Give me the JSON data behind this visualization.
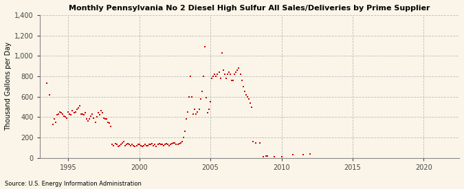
{
  "title": "Monthly Pennsylvania No 2 Diesel High Sulfur All Sales/Deliveries by Prime Supplier",
  "ylabel": "Thousand Gallons per Day",
  "source": "Source: U.S. Energy Information Administration",
  "background_color": "#faf5e8",
  "dot_color": "#cc0000",
  "xlim": [
    1993.0,
    2022.5
  ],
  "ylim": [
    0,
    1400
  ],
  "yticks": [
    0,
    200,
    400,
    600,
    800,
    1000,
    1200,
    1400
  ],
  "xticks": [
    1995,
    2000,
    2005,
    2010,
    2015,
    2020
  ],
  "data_x": [
    1993.5,
    1993.7,
    1993.9,
    1994.0,
    1994.1,
    1994.2,
    1994.3,
    1994.4,
    1994.5,
    1994.6,
    1994.7,
    1994.8,
    1994.9,
    1995.0,
    1995.1,
    1995.2,
    1995.3,
    1995.4,
    1995.5,
    1995.6,
    1995.7,
    1995.8,
    1995.9,
    1996.0,
    1996.1,
    1996.2,
    1996.3,
    1996.4,
    1996.5,
    1996.6,
    1996.7,
    1996.8,
    1996.9,
    1997.0,
    1997.1,
    1997.2,
    1997.3,
    1997.4,
    1997.5,
    1997.6,
    1997.7,
    1997.8,
    1997.9,
    1998.0,
    1998.1,
    1998.2,
    1998.3,
    1998.4,
    1998.5,
    1998.6,
    1998.7,
    1998.8,
    1998.9,
    1999.0,
    1999.1,
    1999.2,
    1999.3,
    1999.4,
    1999.5,
    1999.6,
    1999.7,
    1999.8,
    1999.9,
    2000.0,
    2000.1,
    2000.2,
    2000.3,
    2000.4,
    2000.5,
    2000.6,
    2000.7,
    2000.8,
    2000.9,
    2001.0,
    2001.1,
    2001.2,
    2001.3,
    2001.4,
    2001.5,
    2001.6,
    2001.7,
    2001.8,
    2001.9,
    2002.0,
    2002.1,
    2002.2,
    2002.3,
    2002.4,
    2002.5,
    2002.6,
    2002.7,
    2002.8,
    2002.9,
    2003.0,
    2003.1,
    2003.2,
    2003.3,
    2003.4,
    2003.5,
    2003.6,
    2003.7,
    2003.8,
    2003.9,
    2004.0,
    2004.1,
    2004.2,
    2004.3,
    2004.4,
    2004.5,
    2004.6,
    2004.7,
    2004.8,
    2004.9,
    2005.0,
    2005.1,
    2005.2,
    2005.3,
    2005.4,
    2005.5,
    2005.6,
    2005.7,
    2005.8,
    2005.9,
    2006.0,
    2006.1,
    2006.2,
    2006.3,
    2006.4,
    2006.5,
    2006.6,
    2006.7,
    2006.8,
    2006.9,
    2007.0,
    2007.1,
    2007.2,
    2007.3,
    2007.4,
    2007.5,
    2007.6,
    2007.7,
    2007.8,
    2007.9,
    2008.0,
    2008.2,
    2008.5,
    2008.7,
    2008.9,
    2009.0,
    2009.5,
    2010.0,
    2010.8,
    2011.5,
    2012.0
  ],
  "data_y": [
    730,
    620,
    330,
    380,
    350,
    420,
    430,
    450,
    440,
    430,
    410,
    400,
    390,
    450,
    430,
    420,
    460,
    440,
    450,
    480,
    490,
    510,
    430,
    430,
    420,
    440,
    380,
    360,
    380,
    410,
    430,
    390,
    350,
    400,
    440,
    420,
    460,
    440,
    390,
    380,
    380,
    350,
    340,
    310,
    130,
    120,
    140,
    130,
    110,
    120,
    130,
    150,
    160,
    120,
    130,
    140,
    130,
    120,
    130,
    120,
    110,
    120,
    130,
    130,
    120,
    110,
    120,
    130,
    120,
    120,
    130,
    130,
    140,
    120,
    130,
    110,
    130,
    140,
    130,
    130,
    120,
    130,
    140,
    130,
    120,
    130,
    140,
    150,
    150,
    130,
    130,
    140,
    150,
    160,
    200,
    260,
    380,
    450,
    600,
    800,
    600,
    430,
    480,
    430,
    450,
    480,
    580,
    650,
    800,
    1090,
    590,
    440,
    480,
    550,
    780,
    800,
    820,
    800,
    820,
    840,
    780,
    1030,
    860,
    820,
    780,
    820,
    840,
    820,
    760,
    760,
    820,
    840,
    860,
    880,
    820,
    760,
    700,
    650,
    620,
    600,
    580,
    540,
    500,
    160,
    150,
    150,
    10,
    20,
    20,
    10,
    10,
    30,
    30,
    40
  ]
}
